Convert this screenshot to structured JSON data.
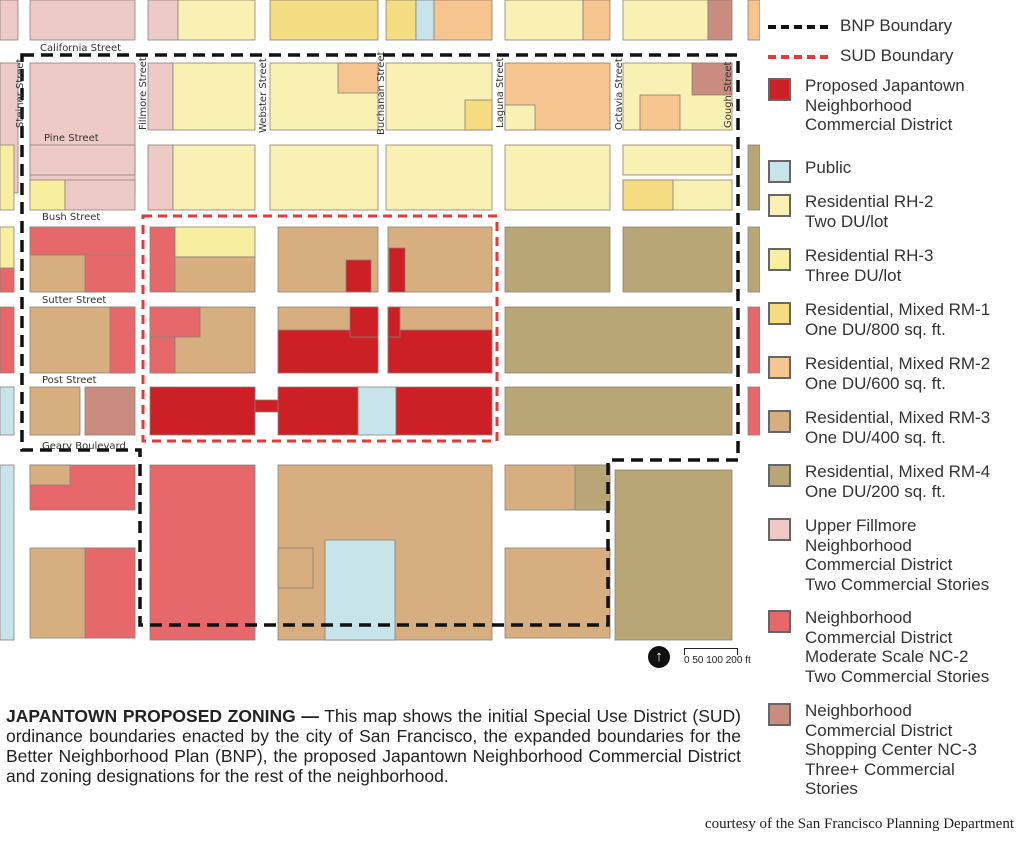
{
  "map": {
    "streets_horizontal": [
      "California Street",
      "Pine Street",
      "Bush Street",
      "Sutter Street",
      "Post Street",
      "Geary Boulevard"
    ],
    "streets_vertical": [
      "Steiner Street",
      "Fillmore Street",
      "Webster Street",
      "Buchanan Street",
      "Laguna Street",
      "Octavia Street",
      "Gough Street"
    ],
    "scale_label": "0 50 100  200",
    "scale_unit": "ft",
    "north_icon": "north-arrow-icon"
  },
  "legend": {
    "bnp": {
      "label": "BNP Boundary",
      "color": "#111111"
    },
    "sud": {
      "label": "SUD Boundary",
      "color": "#e03a3a"
    },
    "zones": [
      {
        "key": "jncd",
        "label": "Proposed Japantown\nNeighborhood\nCommercial District",
        "color": "#cc1f26"
      },
      {
        "key": "public",
        "label": "Public",
        "color": "#c6e4ea"
      },
      {
        "key": "rh2",
        "label": "Residential RH-2\nTwo DU/lot",
        "color": "#f9f1b4"
      },
      {
        "key": "rh3",
        "label": "Residential RH-3\nThree DU/lot",
        "color": "#f7eea0"
      },
      {
        "key": "rm1",
        "label": "Residential, Mixed RM-1\nOne DU/800 sq. ft.",
        "color": "#f3dc82"
      },
      {
        "key": "rm2",
        "label": "Residential, Mixed RM-2\nOne DU/600 sq. ft.",
        "color": "#f5c48f"
      },
      {
        "key": "rm3",
        "label": "Residential, Mixed RM-3\nOne DU/400 sq. ft.",
        "color": "#d7ae80"
      },
      {
        "key": "rm4",
        "label": "Residential, Mixed RM-4\nOne DU/200 sq. ft.",
        "color": "#b8a677"
      },
      {
        "key": "ufncd",
        "label": "Upper Fillmore\nNeighborhood\nCommercial District\nTwo Commercial Stories",
        "color": "#edcac6"
      },
      {
        "key": "nc2",
        "label": "Neighborhood\nCommercial District\nModerate Scale NC-2\nTwo Commercial Stories",
        "color": "#e6686b"
      },
      {
        "key": "nc3",
        "label": "Neighborhood\nCommercial District\nShopping Center NC-3\nThree+ Commercial\nStories",
        "color": "#c98c80"
      }
    ]
  },
  "caption": {
    "title": "JAPANTOWN PROPOSED ZONING —",
    "body": " This map shows the initial Special Use District (SUD) ordinance boundaries enacted by the city of San Francisco, the expanded boundaries for the Better Neighborhood Plan (BNP), the proposed Japantown Neighborhood Commercial District and zoning designations for the rest of the neighborhood."
  },
  "credit": "courtesy of the San Francisco Planning Department"
}
